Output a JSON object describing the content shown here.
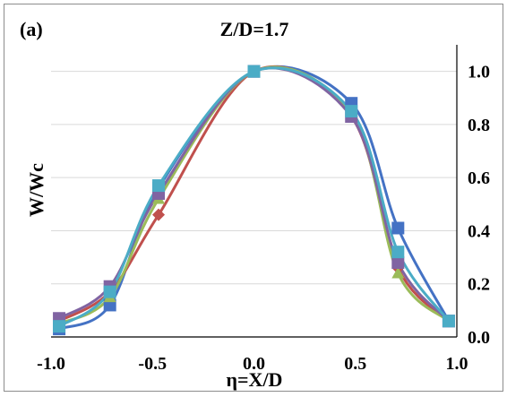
{
  "panel_label": "(a)",
  "chart_data": {
    "type": "line",
    "title": "Z/D=1.7",
    "xlabel": "η=X/D",
    "ylabel": "W/Wc",
    "xlim": [
      -1.0,
      1.0
    ],
    "ylim": [
      0.0,
      1.1
    ],
    "xticks": [
      "-1.0",
      "-0.5",
      "0.0",
      "0.5",
      "1.0"
    ],
    "yticks": [
      "0.0",
      "0.2",
      "0.4",
      "0.6",
      "0.8",
      "1.0"
    ],
    "grid": "horizontal",
    "legend": "none",
    "series": [
      {
        "color": "#4472C4",
        "marker": "square",
        "x": [
          -0.96,
          -0.71,
          -0.47,
          0.0,
          0.48,
          0.71,
          0.96
        ],
        "y": [
          0.03,
          0.12,
          0.56,
          1.0,
          0.88,
          0.41,
          0.06
        ]
      },
      {
        "color": "#C0504D",
        "marker": "diamond",
        "x": [
          -0.96,
          -0.71,
          -0.47,
          0.0,
          0.48,
          0.71,
          0.96
        ],
        "y": [
          0.06,
          0.17,
          0.46,
          1.0,
          0.83,
          0.26,
          0.06
        ]
      },
      {
        "color": "#9BBB59",
        "marker": "triangle",
        "x": [
          -0.96,
          -0.71,
          -0.47,
          0.0,
          0.48,
          0.71,
          0.96
        ],
        "y": [
          0.05,
          0.15,
          0.52,
          1.0,
          0.84,
          0.24,
          0.06
        ]
      },
      {
        "color": "#8064A2",
        "marker": "square",
        "x": [
          -0.96,
          -0.71,
          -0.47,
          0.0,
          0.48,
          0.71,
          0.96
        ],
        "y": [
          0.07,
          0.19,
          0.54,
          1.0,
          0.83,
          0.28,
          0.06
        ]
      },
      {
        "color": "#4BACC6",
        "marker": "square",
        "x": [
          -0.96,
          -0.71,
          -0.47,
          0.0,
          0.48,
          0.71,
          0.96
        ],
        "y": [
          0.04,
          0.17,
          0.57,
          1.0,
          0.85,
          0.32,
          0.06
        ]
      }
    ]
  }
}
